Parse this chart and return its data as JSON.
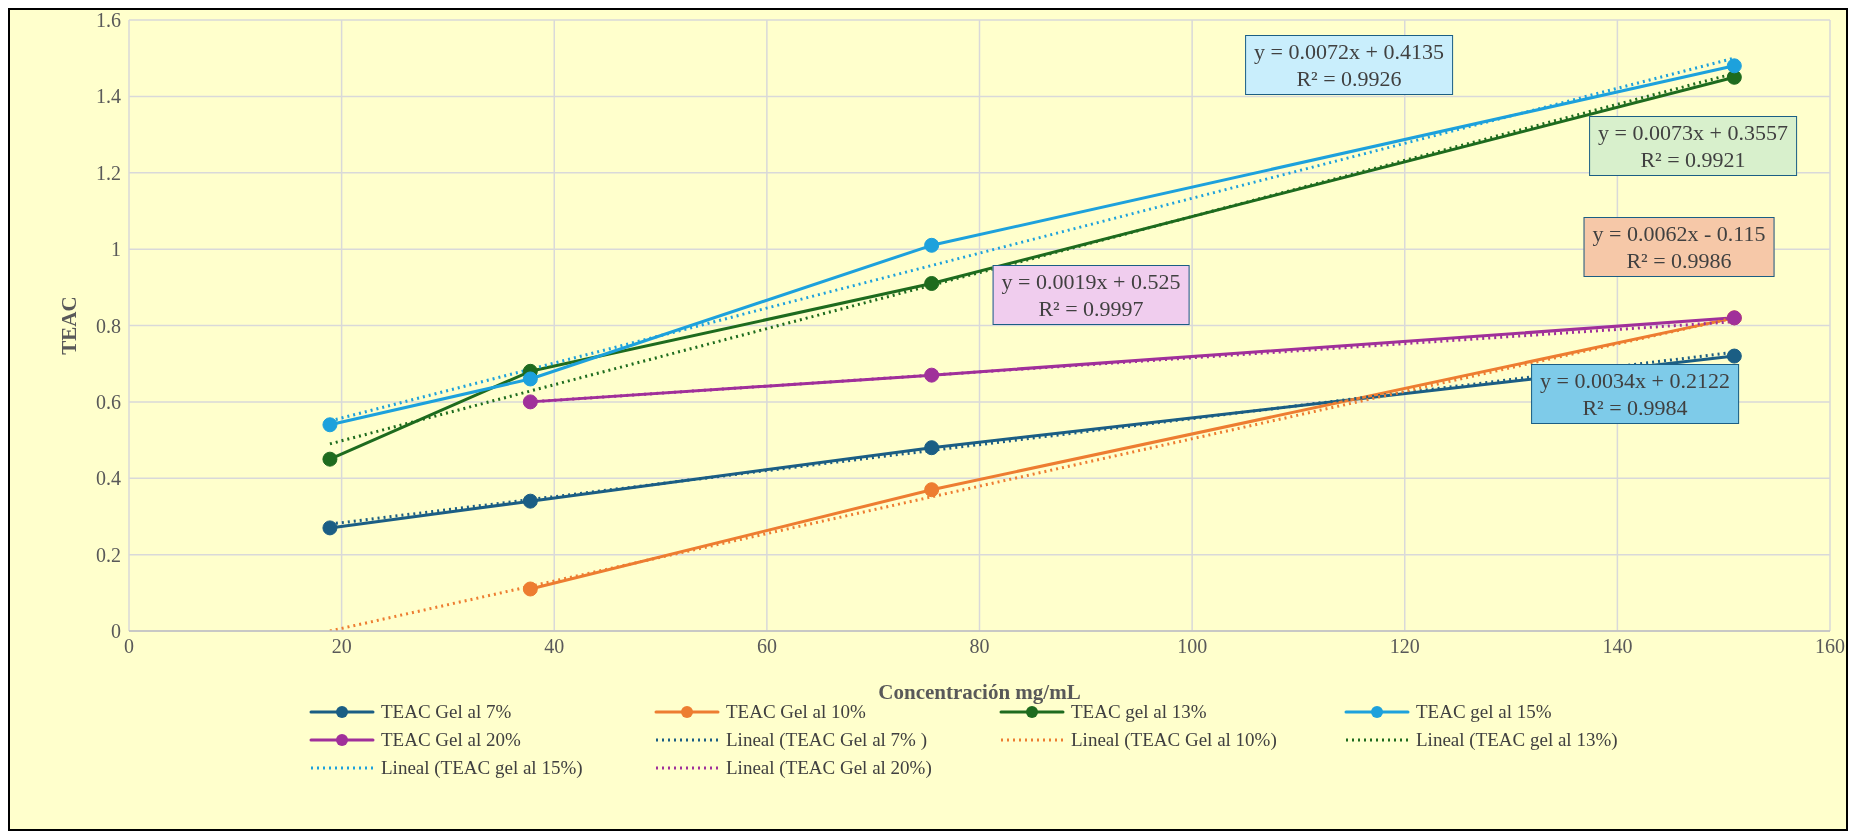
{
  "chart_data": {
    "type": "line",
    "xlabel": "Concentración mg/mL",
    "ylabel": "TEAC",
    "xlim": [
      0,
      160
    ],
    "xticks": [
      0,
      20,
      40,
      60,
      80,
      100,
      120,
      140,
      160
    ],
    "ylim": [
      0,
      1.6
    ],
    "yticks": [
      0,
      0.2,
      0.4,
      0.6,
      0.8,
      1,
      1.2,
      1.4,
      1.6
    ],
    "grid": true,
    "legend": "bottom",
    "marker": "circle",
    "line_style": "solid",
    "series": [
      {
        "name": "TEAC Gel al 7%",
        "color": "#1b5e84",
        "x": [
          18.9,
          37.75,
          75.5,
          151
        ],
        "values": [
          0.27,
          0.34,
          0.48,
          0.72
        ]
      },
      {
        "name": "TEAC Gel al 10%",
        "color": "#ed7d31",
        "x": [
          37.75,
          75.5,
          151
        ],
        "values": [
          0.11,
          0.37,
          0.82
        ]
      },
      {
        "name": "TEAC gel al 13%",
        "color": "#1e6b1e",
        "x": [
          18.9,
          37.75,
          75.5,
          151
        ],
        "values": [
          0.45,
          0.68,
          0.91,
          1.45
        ]
      },
      {
        "name": "TEAC gel al 15%",
        "color": "#1da1dc",
        "x": [
          18.9,
          37.75,
          75.5,
          151
        ],
        "values": [
          0.54,
          0.66,
          1.01,
          1.48
        ]
      },
      {
        "name": "TEAC Gel al 20%",
        "color": "#a0309a",
        "x": [
          37.75,
          75.5,
          151
        ],
        "values": [
          0.6,
          0.67,
          0.82
        ]
      },
      {
        "name": "Lineal (TEAC Gel al 7% )",
        "color": "#1b5e84",
        "type": "line",
        "line_style": "dotted",
        "marker": "none",
        "x": [
          18.9,
          151
        ],
        "values": [
          0.28,
          0.73
        ]
      },
      {
        "name": "Lineal (TEAC Gel al 10%)",
        "color": "#ed7d31",
        "type": "line",
        "line_style": "dotted",
        "marker": "none",
        "x": [
          18.9,
          151
        ],
        "values": [
          0,
          0.82
        ]
      },
      {
        "name": "Lineal (TEAC gel al 13%)",
        "color": "#1e6b1e",
        "type": "line",
        "line_style": "dotted",
        "marker": "none",
        "x": [
          18.9,
          151
        ],
        "values": [
          0.49,
          1.46
        ]
      },
      {
        "name": "Lineal (TEAC gel al 15%)",
        "color": "#1da1dc",
        "type": "line",
        "line_style": "dotted",
        "marker": "none",
        "x": [
          18.9,
          151
        ],
        "values": [
          0.55,
          1.5
        ]
      },
      {
        "name": "Lineal (TEAC Gel al 20%)",
        "color": "#a0309a",
        "type": "line",
        "line_style": "dotted",
        "marker": "none",
        "x": [
          37.75,
          151
        ],
        "values": [
          0.6,
          0.81
        ]
      }
    ],
    "annotations": [
      "y = 0.0072x + 0.4135\nR² = 0.9926",
      "y = 0.0073x + 0.3557\nR² = 0.9921",
      "y = 0.0062x - 0.115\nR² = 0.9986",
      "y = 0.0019x + 0.525\nR² = 0.9997",
      "y = 0.0034x + 0.2122\nR² = 0.9984"
    ]
  }
}
